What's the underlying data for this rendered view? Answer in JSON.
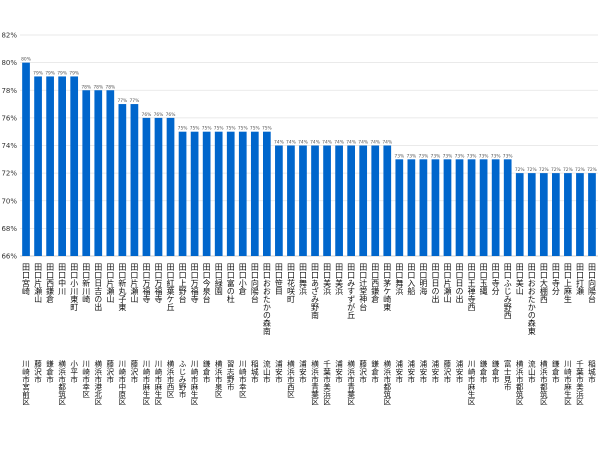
{
  "chart_data": {
    "type": "bar",
    "ylim": [
      66,
      82
    ],
    "yticks": [
      66,
      68,
      70,
      72,
      74,
      76,
      78,
      80,
      82
    ],
    "tick_suffix": "%",
    "bar_color": "#0066CC",
    "grid": true,
    "points": [
      {
        "value": 80,
        "label": "80%",
        "station": "田口宮崎",
        "ward": "川崎市宮前区"
      },
      {
        "value": 79,
        "label": "79%",
        "station": "田口片瀬山",
        "ward": "藤沢市"
      },
      {
        "value": 79,
        "label": "79%",
        "station": "田口西鎌倉",
        "ward": "鎌倉市"
      },
      {
        "value": 79,
        "label": "79%",
        "station": "田口中川",
        "ward": "横浜市都筑区"
      },
      {
        "value": 79,
        "label": "79%",
        "station": "田口小川東町",
        "ward": "小平市"
      },
      {
        "value": 78,
        "label": "78%",
        "station": "田口新川崎",
        "ward": "川崎市幸区"
      },
      {
        "value": 78,
        "label": "78%",
        "station": "田口日吉の出",
        "ward": "横浜市港北区"
      },
      {
        "value": 78,
        "label": "78%",
        "station": "田口片瀬山",
        "ward": "藤沢市"
      },
      {
        "value": 77,
        "label": "77%",
        "station": "田口新丸子東",
        "ward": "川崎市中原区"
      },
      {
        "value": 77,
        "label": "77%",
        "station": "田口片瀬山",
        "ward": "藤沢市"
      },
      {
        "value": 76,
        "label": "76%",
        "station": "田口万福寺",
        "ward": "川崎市麻生区"
      },
      {
        "value": 76,
        "label": "76%",
        "station": "田口万福寺",
        "ward": "川崎市麻生区"
      },
      {
        "value": 76,
        "label": "76%",
        "station": "田口紅葉ケ丘",
        "ward": "横浜市西区"
      },
      {
        "value": 75,
        "label": "75%",
        "station": "田口上野台",
        "ward": "ふじみ野市"
      },
      {
        "value": 75,
        "label": "75%",
        "station": "田口万福寺",
        "ward": "川崎市麻生区"
      },
      {
        "value": 75,
        "label": "75%",
        "station": "田口今泉台",
        "ward": "鎌倉市"
      },
      {
        "value": 75,
        "label": "75%",
        "station": "田口緑園",
        "ward": "横浜市泉区"
      },
      {
        "value": 75,
        "label": "75%",
        "station": "田口富の杜",
        "ward": "習志野市"
      },
      {
        "value": 75,
        "label": "75%",
        "station": "田口小倉",
        "ward": "川崎市幸区"
      },
      {
        "value": 75,
        "label": "75%",
        "station": "田口向陽台",
        "ward": "稲城市"
      },
      {
        "value": 75,
        "label": "75%",
        "station": "田口おおたかの森南",
        "ward": "流山市"
      },
      {
        "value": 74,
        "label": "74%",
        "station": "田口笹目",
        "ward": "浦安市"
      },
      {
        "value": 74,
        "label": "74%",
        "station": "田口花咲町",
        "ward": "横浜市西区"
      },
      {
        "value": 74,
        "label": "74%",
        "station": "田口舞浜",
        "ward": "浦安市"
      },
      {
        "value": 74,
        "label": "74%",
        "station": "田口あざみ野南",
        "ward": "横浜市青葉区"
      },
      {
        "value": 74,
        "label": "74%",
        "station": "田口美浜",
        "ward": "千葉市美浜区"
      },
      {
        "value": 74,
        "label": "74%",
        "station": "田口美浜",
        "ward": "浦安市"
      },
      {
        "value": 74,
        "label": "74%",
        "station": "田口みすずが丘",
        "ward": "横浜市青葉区"
      },
      {
        "value": 74,
        "label": "74%",
        "station": "田口辻堂神台",
        "ward": "藤沢市"
      },
      {
        "value": 74,
        "label": "74%",
        "station": "田口西鎌倉",
        "ward": "鎌倉市"
      },
      {
        "value": 74,
        "label": "74%",
        "station": "田口茅ケ崎東",
        "ward": "横浜市都筑区"
      },
      {
        "value": 73,
        "label": "73%",
        "station": "田口舞浜",
        "ward": "浦安市"
      },
      {
        "value": 73,
        "label": "73%",
        "station": "田口入船",
        "ward": "浦安市"
      },
      {
        "value": 73,
        "label": "73%",
        "station": "田口明海",
        "ward": "浦安市"
      },
      {
        "value": 73,
        "label": "73%",
        "station": "田口日の出",
        "ward": "浦安市"
      },
      {
        "value": 73,
        "label": "73%",
        "station": "田口片瀬山",
        "ward": "藤沢市"
      },
      {
        "value": 73,
        "label": "73%",
        "station": "田口日の出",
        "ward": "浦安市"
      },
      {
        "value": 73,
        "label": "73%",
        "station": "田口王禅寺西",
        "ward": "川崎市麻生区"
      },
      {
        "value": 73,
        "label": "73%",
        "station": "田口玉縄",
        "ward": "鎌倉市"
      },
      {
        "value": 73,
        "label": "73%",
        "station": "田口寺分",
        "ward": "鎌倉市"
      },
      {
        "value": 73,
        "label": "73%",
        "station": "田口ふじみ野西",
        "ward": "富士見市"
      },
      {
        "value": 72,
        "label": "72%",
        "station": "田口美山",
        "ward": "横浜市都筑区"
      },
      {
        "value": 72,
        "label": "72%",
        "station": "田口おおたかの森東",
        "ward": "流山市"
      },
      {
        "value": 72,
        "label": "72%",
        "station": "田口大棚西",
        "ward": "横浜市都筑区"
      },
      {
        "value": 72,
        "label": "72%",
        "station": "田口寺分",
        "ward": "鎌倉市"
      },
      {
        "value": 72,
        "label": "72%",
        "station": "田口上麻生",
        "ward": "川崎市麻生区"
      },
      {
        "value": 72,
        "label": "72%",
        "station": "田口打瀬",
        "ward": "千葉市美浜区"
      },
      {
        "value": 72,
        "label": "72%",
        "station": "田口向陽台",
        "ward": "稲城市"
      }
    ]
  }
}
